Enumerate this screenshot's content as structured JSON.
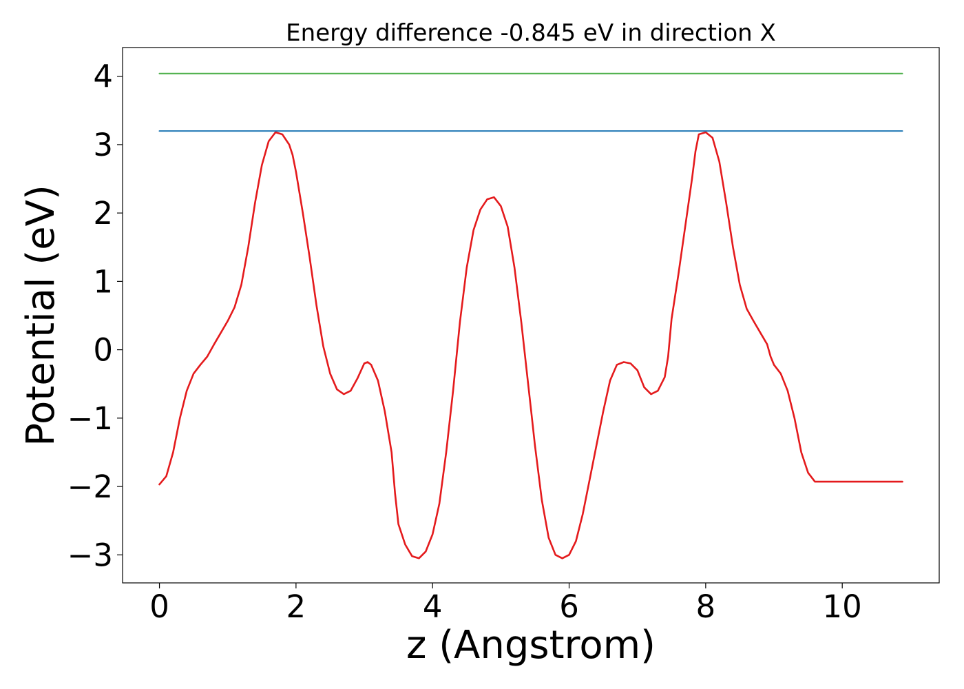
{
  "chart_data": {
    "type": "line",
    "title": "Energy difference -0.845 eV in direction X",
    "xlabel": "z (Angstrom)",
    "ylabel": "Potential (eV)",
    "xlim": [
      -0.54,
      11.42
    ],
    "ylim": [
      -3.41,
      4.42
    ],
    "xticks": [
      0,
      2,
      4,
      6,
      8,
      10
    ],
    "xtick_labels": [
      "0",
      "2",
      "4",
      "6",
      "8",
      "10"
    ],
    "yticks": [
      -3,
      -2,
      -1,
      0,
      1,
      2,
      3,
      4
    ],
    "ytick_labels": [
      "−3",
      "−2",
      "−1",
      "0",
      "1",
      "2",
      "3",
      "4"
    ],
    "grid": false,
    "series": [
      {
        "color": "#e41a1c",
        "x": [
          0.0,
          0.1,
          0.2,
          0.3,
          0.4,
          0.5,
          0.6,
          0.7,
          0.8,
          0.9,
          1.0,
          1.1,
          1.2,
          1.3,
          1.4,
          1.5,
          1.6,
          1.7,
          1.8,
          1.9,
          1.95,
          2.0,
          2.1,
          2.2,
          2.3,
          2.4,
          2.5,
          2.6,
          2.7,
          2.8,
          2.9,
          3.0,
          3.05,
          3.1,
          3.2,
          3.3,
          3.4,
          3.45,
          3.5,
          3.6,
          3.7,
          3.8,
          3.9,
          4.0,
          4.1,
          4.2,
          4.3,
          4.4,
          4.5,
          4.6,
          4.7,
          4.8,
          4.9,
          5.0,
          5.1,
          5.2,
          5.3,
          5.4,
          5.45,
          5.5,
          5.6,
          5.7,
          5.8,
          5.9,
          6.0,
          6.1,
          6.2,
          6.3,
          6.4,
          6.5,
          6.6,
          6.7,
          6.8,
          6.9,
          7.0,
          7.1,
          7.2,
          7.3,
          7.4,
          7.45,
          7.5,
          7.6,
          7.7,
          7.8,
          7.85,
          7.9,
          8.0,
          8.1,
          8.2,
          8.3,
          8.4,
          8.5,
          8.6,
          8.7,
          8.8,
          8.9,
          8.95,
          9.0,
          9.1,
          9.2,
          9.3,
          9.4,
          9.5,
          9.6,
          9.7,
          9.8,
          9.9,
          10.0,
          10.1,
          10.2,
          10.3,
          10.4,
          10.5,
          10.6,
          10.7,
          10.8,
          10.88
        ],
        "y": [
          -1.97,
          -1.85,
          -1.5,
          -1.0,
          -0.6,
          -0.35,
          -0.22,
          -0.1,
          0.08,
          0.25,
          0.42,
          0.62,
          0.95,
          1.5,
          2.15,
          2.7,
          3.05,
          3.18,
          3.15,
          3.0,
          2.85,
          2.6,
          2.0,
          1.35,
          0.65,
          0.05,
          -0.35,
          -0.58,
          -0.65,
          -0.6,
          -0.42,
          -0.2,
          -0.18,
          -0.22,
          -0.45,
          -0.9,
          -1.5,
          -2.1,
          -2.55,
          -2.85,
          -3.02,
          -3.05,
          -2.95,
          -2.7,
          -2.25,
          -1.5,
          -0.6,
          0.4,
          1.2,
          1.75,
          2.05,
          2.2,
          2.23,
          2.1,
          1.8,
          1.2,
          0.4,
          -0.5,
          -0.95,
          -1.4,
          -2.2,
          -2.75,
          -3.0,
          -3.05,
          -3.0,
          -2.8,
          -2.4,
          -1.9,
          -1.4,
          -0.9,
          -0.45,
          -0.22,
          -0.18,
          -0.2,
          -0.3,
          -0.55,
          -0.65,
          -0.6,
          -0.4,
          -0.1,
          0.45,
          1.1,
          1.8,
          2.5,
          2.9,
          3.15,
          3.18,
          3.1,
          2.75,
          2.15,
          1.5,
          0.95,
          0.6,
          0.42,
          0.25,
          0.08,
          -0.1,
          -0.22,
          -0.35,
          -0.6,
          -1.0,
          -1.5,
          -1.8,
          -1.93,
          -1.93,
          -1.93,
          -1.93,
          -1.93,
          -1.93,
          -1.93,
          -1.93,
          -1.93,
          -1.93,
          -1.93,
          -1.93,
          -1.93,
          -1.93
        ]
      },
      {
        "color": "#1f77b4",
        "x": [
          0.0,
          10.88
        ],
        "y": [
          3.2,
          3.2
        ]
      },
      {
        "color": "#4daf4a",
        "x": [
          0.0,
          10.88
        ],
        "y": [
          4.04,
          4.04
        ]
      }
    ]
  }
}
